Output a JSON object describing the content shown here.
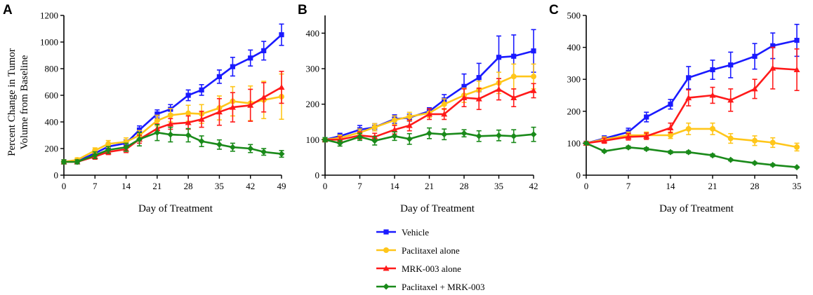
{
  "legend": [
    {
      "name": "Vehicle",
      "color": "#1a1aff",
      "marker": "square"
    },
    {
      "name": "Paclitaxel alone",
      "color": "#ffc61a",
      "marker": "circle"
    },
    {
      "name": "MRK-003 alone",
      "color": "#ff1a1a",
      "marker": "triangle"
    },
    {
      "name": "Paclitaxel + MRK-003",
      "color": "#1a8a1a",
      "marker": "diamond"
    }
  ],
  "chart_data": [
    {
      "panel": "A",
      "type": "line",
      "ylabel": [
        "Percent Change in Tumor",
        "Volume from Baseline"
      ],
      "xlabel": "Day  of Treatment",
      "xlim": [
        0,
        49
      ],
      "ylim": [
        0,
        1200
      ],
      "xticks": [
        0,
        7,
        14,
        21,
        28,
        35,
        42,
        49
      ],
      "yticks": [
        0,
        200,
        400,
        600,
        800,
        1000,
        1200
      ],
      "series": [
        {
          "name": "Vehicle",
          "x": [
            0,
            3,
            7,
            10,
            14,
            17,
            21,
            24,
            28,
            31,
            35,
            38,
            42,
            45,
            49
          ],
          "y": [
            100,
            105,
            165,
            215,
            240,
            340,
            460,
            495,
            600,
            640,
            740,
            815,
            880,
            935,
            1055
          ],
          "err": [
            15,
            15,
            20,
            25,
            25,
            30,
            30,
            35,
            40,
            40,
            50,
            70,
            60,
            70,
            80
          ]
        },
        {
          "name": "Paclitaxel alone",
          "x": [
            0,
            3,
            7,
            10,
            14,
            17,
            21,
            24,
            28,
            31,
            35,
            38,
            42,
            45,
            49
          ],
          "y": [
            100,
            115,
            185,
            235,
            250,
            300,
            410,
            450,
            465,
            460,
            505,
            555,
            540,
            565,
            590
          ],
          "err": [
            15,
            15,
            20,
            25,
            30,
            35,
            40,
            50,
            60,
            70,
            90,
            110,
            130,
            140,
            170
          ]
        },
        {
          "name": "MRK-003 alone",
          "x": [
            0,
            3,
            7,
            10,
            14,
            17,
            21,
            24,
            28,
            31,
            35,
            38,
            42,
            45,
            49
          ],
          "y": [
            100,
            100,
            140,
            175,
            195,
            270,
            350,
            385,
            395,
            420,
            475,
            510,
            525,
            585,
            660
          ],
          "err": [
            15,
            15,
            20,
            20,
            25,
            30,
            35,
            40,
            50,
            60,
            100,
            110,
            120,
            110,
            120
          ]
        },
        {
          "name": "Paclitaxel + MRK-003",
          "x": [
            0,
            3,
            7,
            10,
            14,
            17,
            21,
            24,
            28,
            31,
            35,
            38,
            42,
            45,
            49
          ],
          "y": [
            100,
            100,
            150,
            190,
            210,
            270,
            320,
            305,
            300,
            255,
            230,
            210,
            200,
            175,
            160
          ],
          "err": [
            15,
            15,
            25,
            25,
            30,
            50,
            60,
            55,
            50,
            40,
            35,
            30,
            30,
            25,
            25
          ]
        }
      ]
    },
    {
      "panel": "B",
      "type": "line",
      "xlabel": "Day  of Treatment",
      "xlim": [
        0,
        42
      ],
      "ylim": [
        0,
        450
      ],
      "xticks": [
        0,
        7,
        14,
        21,
        28,
        35,
        42
      ],
      "yticks": [
        0,
        100,
        200,
        300,
        400
      ],
      "series": [
        {
          "name": "Vehicle",
          "x": [
            0,
            3,
            7,
            10,
            14,
            17,
            21,
            24,
            28,
            31,
            35,
            38,
            42
          ],
          "y": [
            100,
            110,
            128,
            135,
            158,
            162,
            180,
            212,
            250,
            275,
            332,
            335,
            350
          ],
          "err": [
            6,
            8,
            12,
            10,
            12,
            10,
            10,
            15,
            35,
            40,
            60,
            60,
            60
          ]
        },
        {
          "name": "Paclitaxel alone",
          "x": [
            0,
            3,
            7,
            10,
            14,
            17,
            21,
            24,
            28,
            31,
            35,
            38,
            42
          ],
          "y": [
            100,
            105,
            120,
            135,
            155,
            165,
            175,
            200,
            225,
            240,
            260,
            278,
            278
          ],
          "err": [
            6,
            8,
            10,
            10,
            12,
            12,
            12,
            15,
            20,
            25,
            30,
            35,
            35
          ]
        },
        {
          "name": "MRK-003 alone",
          "x": [
            0,
            3,
            7,
            10,
            14,
            17,
            21,
            24,
            28,
            31,
            35,
            38,
            42
          ],
          "y": [
            100,
            100,
            112,
            108,
            128,
            140,
            172,
            172,
            218,
            215,
            242,
            218,
            238
          ],
          "err": [
            6,
            8,
            10,
            10,
            12,
            15,
            15,
            15,
            25,
            30,
            30,
            25,
            20
          ]
        },
        {
          "name": "Paclitaxel + MRK-003",
          "x": [
            0,
            3,
            7,
            10,
            14,
            17,
            21,
            24,
            28,
            31,
            35,
            38,
            42
          ],
          "y": [
            100,
            90,
            108,
            97,
            110,
            102,
            118,
            115,
            118,
            110,
            112,
            110,
            115
          ],
          "err": [
            6,
            8,
            10,
            12,
            12,
            15,
            15,
            15,
            10,
            15,
            15,
            18,
            20
          ]
        }
      ]
    },
    {
      "panel": "C",
      "type": "line",
      "xlabel": "Day of Treatment",
      "xlim": [
        0,
        35
      ],
      "ylim": [
        0,
        500
      ],
      "xticks": [
        0,
        7,
        14,
        21,
        28,
        35
      ],
      "yticks": [
        0,
        100,
        200,
        300,
        400,
        500
      ],
      "series": [
        {
          "name": "Vehicle",
          "x": [
            0,
            3,
            7,
            10,
            14,
            17,
            21,
            24,
            28,
            31,
            35
          ],
          "y": [
            100,
            115,
            135,
            182,
            222,
            305,
            330,
            345,
            372,
            405,
            422
          ],
          "err": [
            5,
            8,
            12,
            15,
            15,
            35,
            30,
            40,
            40,
            40,
            50
          ]
        },
        {
          "name": "Paclitaxel alone",
          "x": [
            0,
            3,
            7,
            10,
            14,
            17,
            21,
            24,
            28,
            31,
            35
          ],
          "y": [
            100,
            112,
            125,
            125,
            125,
            145,
            145,
            115,
            108,
            102,
            88
          ],
          "err": [
            5,
            8,
            10,
            10,
            10,
            18,
            18,
            15,
            15,
            15,
            12
          ]
        },
        {
          "name": "MRK-003 alone",
          "x": [
            0,
            3,
            7,
            10,
            14,
            17,
            21,
            24,
            28,
            31,
            35
          ],
          "y": [
            100,
            108,
            120,
            122,
            148,
            242,
            250,
            235,
            270,
            335,
            330
          ],
          "err": [
            5,
            8,
            10,
            10,
            15,
            25,
            25,
            35,
            30,
            65,
            65
          ]
        },
        {
          "name": "Paclitaxel + MRK-003",
          "x": [
            0,
            3,
            7,
            10,
            14,
            17,
            21,
            24,
            28,
            31,
            35
          ],
          "y": [
            100,
            75,
            87,
            82,
            72,
            72,
            62,
            48,
            38,
            32,
            25
          ],
          "err": [
            3,
            3,
            4,
            4,
            4,
            4,
            4,
            3,
            3,
            3,
            2
          ]
        }
      ]
    }
  ]
}
